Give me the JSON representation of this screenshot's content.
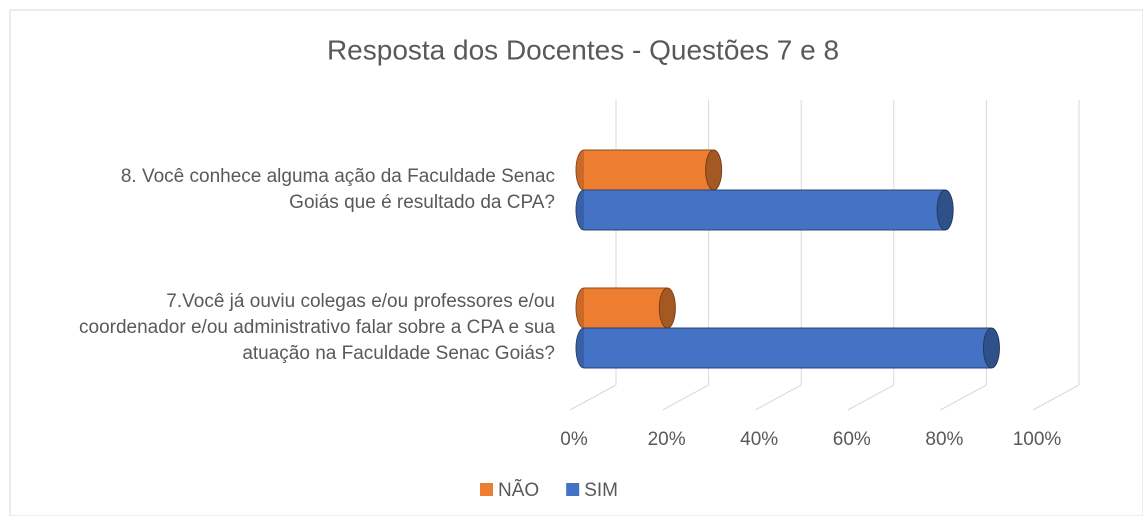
{
  "chart_data": {
    "type": "bar3d_horizontal",
    "title": "Resposta dos Docentes - Questões 7 e 8",
    "categories": [
      "7.Você já ouviu colegas e/ou professores e/ou coordenador e/ou administrativo falar sobre a CPA e sua atuação na Faculdade Senac Goiás?",
      "8. Você conhece alguma ação da Faculdade Senac Goiás que é resultado da CPA?"
    ],
    "series": [
      {
        "name": "NÃO",
        "color": "#ed7d31",
        "values": [
          18,
          28
        ]
      },
      {
        "name": "SIM",
        "color": "#4472c4",
        "values": [
          88,
          78
        ]
      }
    ],
    "xlim": [
      0,
      100
    ],
    "xticks": [
      {
        "value": 0,
        "label": "0%"
      },
      {
        "value": 20,
        "label": "20%"
      },
      {
        "value": 40,
        "label": "40%"
      },
      {
        "value": 60,
        "label": "60%"
      },
      {
        "value": 80,
        "label": "80%"
      },
      {
        "value": 100,
        "label": "100%"
      }
    ],
    "grid": true,
    "legend": "bottom"
  }
}
